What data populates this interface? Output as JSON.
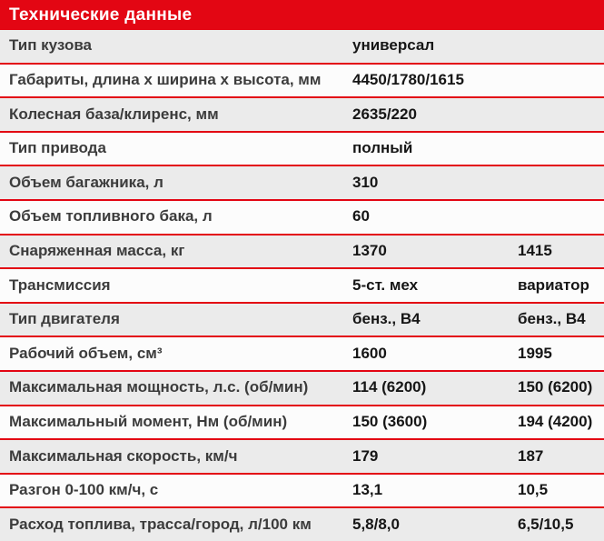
{
  "header": {
    "title": "Технические данные"
  },
  "colors": {
    "accent": "#e30613",
    "row_alt": "#ebebeb",
    "row_base": "#fcfcfc",
    "label_text": "#3c3c3c",
    "value_text": "#161616",
    "header_text": "#ffffff"
  },
  "chart_data": {
    "type": "table",
    "title": "Технические данные",
    "rows": [
      {
        "label": "Тип кузова",
        "values": [
          "универсал",
          ""
        ]
      },
      {
        "label": "Габариты, длина х ширина х высота, мм",
        "values": [
          "4450/1780/1615",
          ""
        ]
      },
      {
        "label": "Колесная база/клиренс, мм",
        "values": [
          "2635/220",
          ""
        ]
      },
      {
        "label": "Тип привода",
        "values": [
          "полный",
          ""
        ]
      },
      {
        "label": "Объем багажника, л",
        "values": [
          "310",
          ""
        ]
      },
      {
        "label": "Объем топливного бака, л",
        "values": [
          "60",
          ""
        ]
      },
      {
        "label": "Снаряженная масса, кг",
        "values": [
          "1370",
          "1415"
        ]
      },
      {
        "label": "Трансмиссия",
        "values": [
          "5-ст. мех",
          "вариатор"
        ]
      },
      {
        "label": "Тип двигателя",
        "values": [
          "бенз., В4",
          "бенз., В4"
        ]
      },
      {
        "label": "Рабочий объем, см³",
        "values": [
          "1600",
          "1995"
        ]
      },
      {
        "label": "Максимальная мощность, л.с. (об/мин)",
        "values": [
          "114 (6200)",
          "150 (6200)"
        ]
      },
      {
        "label": "Максимальный момент, Нм (об/мин)",
        "values": [
          "150 (3600)",
          "194 (4200)"
        ]
      },
      {
        "label": "Максимальная скорость, км/ч",
        "values": [
          "179",
          "187"
        ]
      },
      {
        "label": "Разгон 0-100 км/ч, с",
        "values": [
          "13,1",
          "10,5"
        ]
      },
      {
        "label": "Расход топлива, трасса/город, л/100 км",
        "values": [
          "5,8/8,0",
          "6,5/10,5"
        ]
      }
    ]
  }
}
